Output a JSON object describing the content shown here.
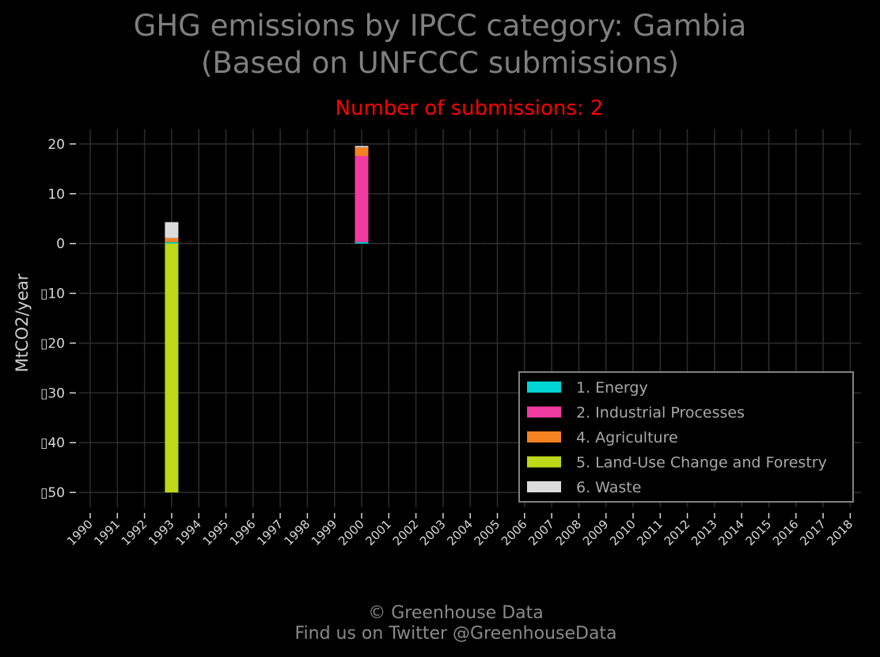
{
  "chart_data": {
    "type": "bar",
    "stacked": true,
    "title": "GHG emissions by IPCC category: Gambia",
    "title_line2": "(Based on UNFCCC submissions)",
    "subtitle": "Number of submissions: 2",
    "xlabel": "",
    "ylabel": "MtCO2/year",
    "ylim": [
      -53,
      23
    ],
    "yticks": [
      20,
      10,
      0,
      -10,
      -20,
      -30,
      -40,
      -50
    ],
    "ytick_labels": [
      "20",
      "10",
      "0",
      "▯10",
      "▯20",
      "▯30",
      "▯40",
      "▯50"
    ],
    "categories": [
      "1990",
      "1991",
      "1992",
      "1993",
      "1994",
      "1995",
      "1996",
      "1997",
      "1998",
      "1999",
      "2000",
      "2001",
      "2002",
      "2003",
      "2004",
      "2005",
      "2006",
      "2007",
      "2008",
      "2009",
      "2010",
      "2011",
      "2012",
      "2013",
      "2014",
      "2015",
      "2016",
      "2017",
      "2018"
    ],
    "grid": true,
    "legend_position": "lower-right",
    "series": [
      {
        "name": "1. Energy",
        "color": "#00d4d4",
        "values": {
          "1993": 0.3,
          "2000": 0.3
        }
      },
      {
        "name": "2. Industrial Processes",
        "color": "#f03ca0",
        "values": {
          "1993": 0.0,
          "2000": 17.3
        }
      },
      {
        "name": "4. Agriculture",
        "color": "#f58220",
        "values": {
          "1993": 0.8,
          "2000": 1.7
        }
      },
      {
        "name": "5. Land-Use Change and Forestry",
        "color": "#bcd816",
        "values": {
          "1993": -50.0,
          "2000": 0.0
        }
      },
      {
        "name": "6. Waste",
        "color": "#dcdcdc",
        "values": {
          "1993": 3.2,
          "2000": 0.3
        }
      }
    ]
  },
  "footer": {
    "line1": "© Greenhouse Data",
    "line2": "Find us on Twitter @GreenhouseData"
  },
  "colors": {
    "background": "#000000",
    "grid": "#2e2e2e",
    "title": "#7f7f7f",
    "subtitle": "#ff0000",
    "legend_border": "#808080"
  }
}
